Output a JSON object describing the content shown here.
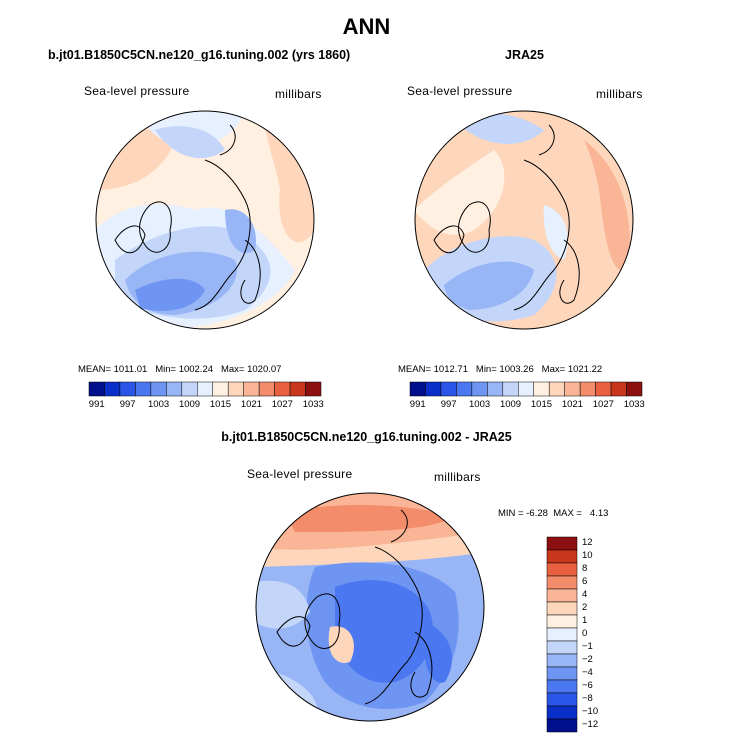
{
  "chart_data": [
    {
      "type": "heatmap",
      "projection": "north-polar-stereographic",
      "title": "b.jt01.B1850C5CN.ne120_g16.tuning.002 (yrs 1860)",
      "left_label": "Sea-level pressure",
      "right_label": "millibars",
      "stats": {
        "mean_label": "MEAN=",
        "mean": "1011.01",
        "min_label": "Min=",
        "min": "1002.24",
        "max_label": "Max=",
        "max": "1020.07"
      },
      "colorbar": {
        "orientation": "horizontal",
        "levels": [
          991,
          994,
          997,
          1000,
          1003,
          1006,
          1009,
          1012,
          1015,
          1018,
          1021,
          1024,
          1027,
          1030,
          1033
        ],
        "tick_labels": [
          "991",
          "997",
          "1003",
          "1009",
          "1015",
          "1021",
          "1027",
          "1033"
        ],
        "colors": [
          "#000f8c",
          "#0a2fc8",
          "#2a55e6",
          "#4b77f0",
          "#6f95f2",
          "#98b5f5",
          "#c3d6fa",
          "#e6f0ff",
          "#fff0e1",
          "#fdd6bc",
          "#f9b596",
          "#f38c6b",
          "#e8603f",
          "#c8371c",
          "#8c1010"
        ]
      }
    },
    {
      "type": "heatmap",
      "projection": "north-polar-stereographic",
      "title": "JRA25",
      "left_label": "Sea-level pressure",
      "right_label": "millibars",
      "stats": {
        "mean_label": "MEAN=",
        "mean": "1012.71",
        "min_label": "Min=",
        "min": "1003.26",
        "max_label": "Max=",
        "max": "1021.22"
      },
      "colorbar": {
        "orientation": "horizontal",
        "levels": [
          991,
          994,
          997,
          1000,
          1003,
          1006,
          1009,
          1012,
          1015,
          1018,
          1021,
          1024,
          1027,
          1030,
          1033
        ],
        "tick_labels": [
          "991",
          "997",
          "1003",
          "1009",
          "1015",
          "1021",
          "1027",
          "1033"
        ],
        "colors": [
          "#000f8c",
          "#0a2fc8",
          "#2a55e6",
          "#4b77f0",
          "#6f95f2",
          "#98b5f5",
          "#c3d6fa",
          "#e6f0ff",
          "#fff0e1",
          "#fdd6bc",
          "#f9b596",
          "#f38c6b",
          "#e8603f",
          "#c8371c",
          "#8c1010"
        ]
      }
    },
    {
      "type": "heatmap",
      "projection": "north-polar-stereographic",
      "title": "b.jt01.B1850C5CN.ne120_g16.tuning.002 - JRA25",
      "left_label": "Sea-level pressure",
      "right_label": "millibars",
      "stats": {
        "min_label": "MIN =",
        "min": "-6.28",
        "max_label": "MAX =",
        "max": "4.13"
      },
      "colorbar": {
        "orientation": "vertical",
        "levels": [
          12,
          10,
          8,
          6,
          4,
          2,
          1,
          0,
          -1,
          -2,
          -4,
          -6,
          -8,
          -10,
          -12
        ],
        "tick_labels": [
          "12",
          "10",
          "8",
          "6",
          "4",
          "2",
          "1",
          "0",
          "−1",
          "−2",
          "−4",
          "−6",
          "−8",
          "−10",
          "−12"
        ],
        "colors": [
          "#8c1010",
          "#c8371c",
          "#e8603f",
          "#f38c6b",
          "#f9b596",
          "#fdd6bc",
          "#fff0e1",
          "#e6f0ff",
          "#c3d6fa",
          "#98b5f5",
          "#6f95f2",
          "#4b77f0",
          "#2a55e6",
          "#0a2fc8",
          "#000f8c"
        ]
      }
    }
  ],
  "page": {
    "title": "ANN"
  }
}
